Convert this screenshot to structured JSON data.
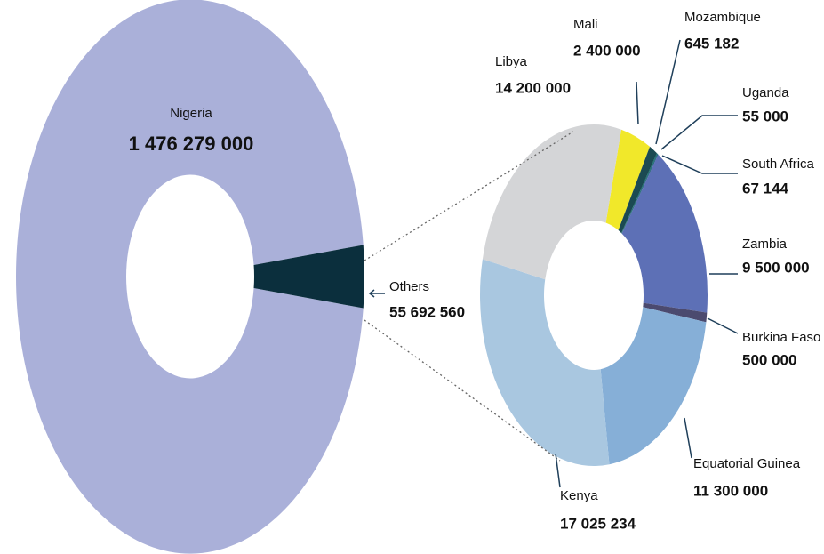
{
  "chart_data": [
    {
      "type": "donut",
      "categories": [
        "Nigeria",
        "Others"
      ],
      "values": [
        1476279000,
        55692560
      ],
      "value_labels": [
        "1 476 279 000",
        "55 692 560"
      ],
      "colors": [
        "#aab0d9",
        "#0b2f3d"
      ]
    },
    {
      "type": "donut",
      "categories": [
        "Mali",
        "Mozambique",
        "Uganda",
        "South Africa",
        "Zambia",
        "Burkina Faso",
        "Equatorial Guinea",
        "Kenya",
        "Libya"
      ],
      "values": [
        2400000,
        645182,
        55000,
        67144,
        9500000,
        500000,
        11300000,
        17025234,
        14200000
      ],
      "value_labels": [
        "2 400 000",
        "645 182",
        "55 000",
        "67 144",
        "9 500 000",
        "500 000",
        "11 300 000",
        "17 025 234",
        "14 200 000"
      ],
      "colors": [
        "#f1e82a",
        "#1b4a52",
        "#0f6f6a",
        "#24607a",
        "#5d70b6",
        "#4b4a6f",
        "#86afd7",
        "#a9c7e0",
        "#d4d5d7"
      ]
    }
  ]
}
